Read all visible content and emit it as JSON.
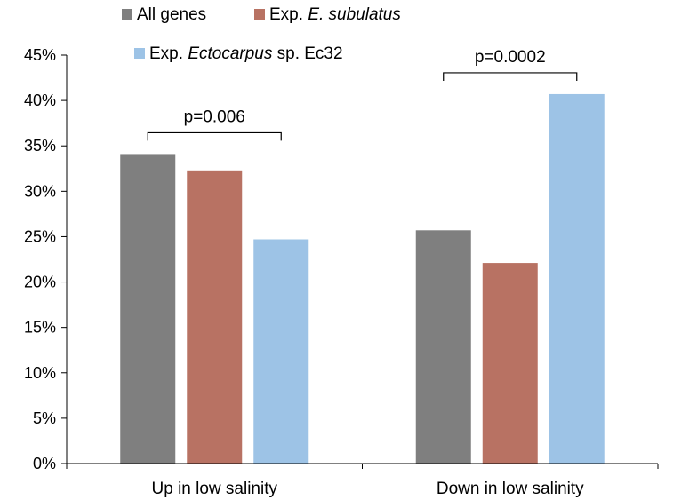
{
  "chart_data": {
    "type": "bar",
    "categories": [
      "Up in low salinity",
      "Down in low salinity"
    ],
    "series": [
      {
        "name": "All genes",
        "color": "#7f7f7f",
        "values": [
          34.1,
          25.7
        ]
      },
      {
        "name_parts": [
          {
            "text": "Exp. ",
            "italic": false
          },
          {
            "text": "E. subulatus",
            "italic": true
          }
        ],
        "color": "#b87263",
        "values": [
          32.3,
          22.1
        ]
      },
      {
        "name_parts": [
          {
            "text": "Exp. ",
            "italic": false
          },
          {
            "text": "Ectocarpus",
            "italic": true
          },
          {
            "text": " sp. Ec32",
            "italic": false
          }
        ],
        "color": "#9dc3e6",
        "values": [
          24.7,
          40.7
        ]
      }
    ],
    "ylim": [
      0,
      45
    ],
    "yticks": [
      "0%",
      "5%",
      "10%",
      "15%",
      "20%",
      "25%",
      "30%",
      "35%",
      "40%",
      "45%"
    ],
    "ytick_values": [
      0,
      5,
      10,
      15,
      20,
      25,
      30,
      35,
      40,
      45
    ],
    "annotations": [
      {
        "text": "p=0.006",
        "category": 0
      },
      {
        "text": "p=0.0002",
        "category": 1
      }
    ],
    "grid": false,
    "legend_position": "top"
  }
}
